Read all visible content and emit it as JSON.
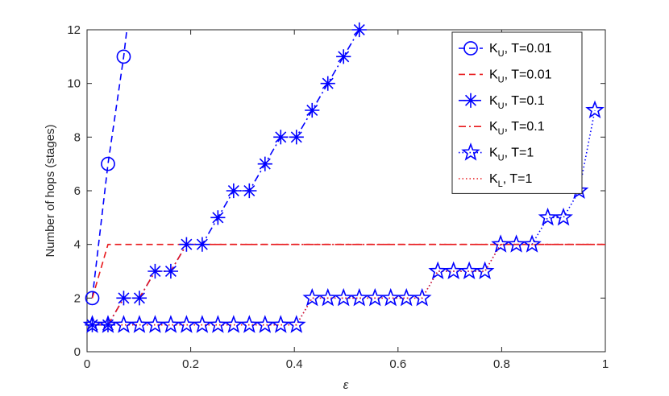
{
  "chart_data": {
    "type": "line",
    "xlabel": "ε",
    "ylabel": "Number of hops (stages)",
    "xlim": [
      0,
      1
    ],
    "ylim": [
      0,
      12
    ],
    "x_ticks": [
      "0",
      "0.2",
      "0.4",
      "0.6",
      "0.8",
      "1"
    ],
    "y_ticks": [
      "0",
      "2",
      "4",
      "6",
      "8",
      "10",
      "12"
    ],
    "grid": false,
    "legend_position": "top-right",
    "series": [
      {
        "name": "K_U, T=0.01",
        "label_main": "K",
        "label_sub": "U",
        "label_rest": ", T=0.01",
        "color": "#0000ff",
        "dash": "dashed",
        "marker": "circle",
        "x": [
          0.0101,
          0.0404,
          0.0707,
          0.101
        ],
        "y": [
          2,
          7,
          11,
          16
        ]
      },
      {
        "name": "K_U, T=0.01 (red)",
        "label_main": "K",
        "label_sub": "U",
        "label_rest": ", T=0.01",
        "color": "#e8191c",
        "dash": "dashed",
        "marker": "none",
        "x": [
          0.0101,
          0.0404,
          1.0
        ],
        "y": [
          2,
          4,
          4
        ]
      },
      {
        "name": "K_U, T=0.1",
        "label_main": "K",
        "label_sub": "U",
        "label_rest": ", T=0.1",
        "color": "#0000ff",
        "dash": "dashdot",
        "marker": "asterisk",
        "x": [
          0.0101,
          0.0404,
          0.0707,
          0.101,
          0.1313,
          0.1616,
          0.1919,
          0.2222,
          0.2525,
          0.2828,
          0.3131,
          0.3434,
          0.3737,
          0.404,
          0.4343,
          0.4646,
          0.4949,
          0.5253
        ],
        "y": [
          1,
          1,
          2,
          2,
          3,
          3,
          4,
          4,
          5,
          6,
          6,
          7,
          8,
          8,
          9,
          10,
          11,
          12
        ]
      },
      {
        "name": "K_U, T=0.1 (red)",
        "label_main": "K",
        "label_sub": "U",
        "label_rest": ", T=0.1",
        "color": "#e8191c",
        "dash": "dashdot",
        "marker": "none",
        "x": [
          0.0101,
          0.0404,
          0.0707,
          0.101,
          0.1313,
          0.1616,
          0.1919,
          1.0
        ],
        "y": [
          1,
          1,
          2,
          2,
          3,
          3,
          4,
          4
        ]
      },
      {
        "name": "K_U, T=1",
        "label_main": "K",
        "label_sub": "U",
        "label_rest": ", T=1",
        "color": "#0000ff",
        "dash": "dotted",
        "marker": "star",
        "x": [
          0.0101,
          0.0404,
          0.0707,
          0.101,
          0.1313,
          0.1616,
          0.1919,
          0.2222,
          0.2525,
          0.2828,
          0.3131,
          0.3434,
          0.3737,
          0.404,
          0.4343,
          0.4646,
          0.4949,
          0.5253,
          0.5556,
          0.5859,
          0.6162,
          0.6465,
          0.6768,
          0.7071,
          0.7374,
          0.7677,
          0.798,
          0.8283,
          0.8586,
          0.8889,
          0.9192,
          0.9495,
          0.9798
        ],
        "y": [
          1,
          1,
          1,
          1,
          1,
          1,
          1,
          1,
          1,
          1,
          1,
          1,
          1,
          1,
          2,
          2,
          2,
          2,
          2,
          2,
          2,
          2,
          3,
          3,
          3,
          3,
          4,
          4,
          4,
          5,
          5,
          6,
          9
        ]
      },
      {
        "name": "K_L, T=1",
        "label_main": "K",
        "label_sub": "L",
        "label_rest": ", T=1",
        "color": "#e8191c",
        "dash": "dotted",
        "marker": "none",
        "x": [
          0.0101,
          0.404,
          0.4343,
          0.6465,
          0.6768,
          0.7677,
          0.798,
          1.0
        ],
        "y": [
          1,
          1,
          2,
          2,
          3,
          3,
          4,
          4
        ]
      }
    ]
  }
}
